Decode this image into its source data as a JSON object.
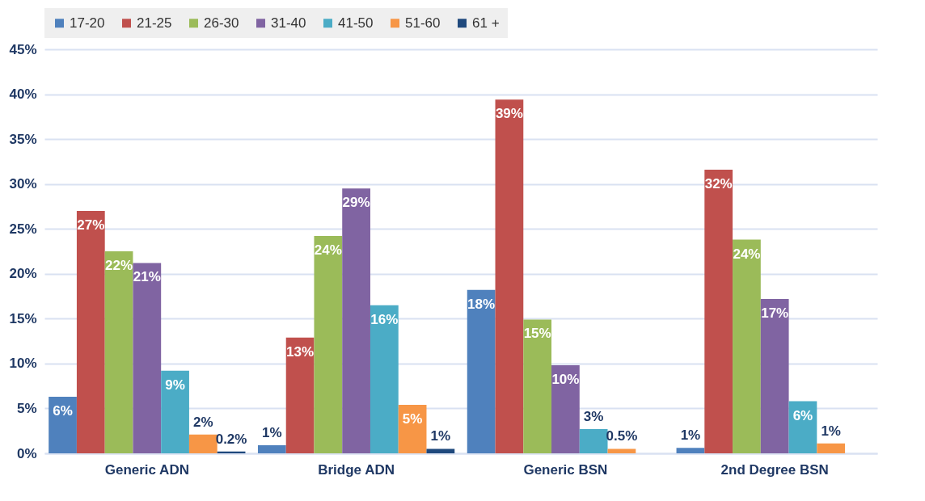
{
  "chart_data": {
    "type": "bar",
    "categories": [
      "Generic ADN",
      "Bridge ADN",
      "Generic BSN",
      "2nd Degree BSN"
    ],
    "series": [
      {
        "name": "17-20",
        "color": "#4f81bd",
        "values": [
          6.3,
          0.9,
          18.2,
          0.6
        ],
        "value_labels": [
          "6%",
          "1%",
          "18%",
          "1%"
        ]
      },
      {
        "name": "21-25",
        "color": "#c0504d",
        "values": [
          27.0,
          12.9,
          39.4,
          31.6
        ],
        "value_labels": [
          "27%",
          "13%",
          "39%",
          "32%"
        ]
      },
      {
        "name": "26-30",
        "color": "#9bbb59",
        "values": [
          22.5,
          24.2,
          14.9,
          23.8
        ],
        "value_labels": [
          "22%",
          "24%",
          "15%",
          "24%"
        ]
      },
      {
        "name": "31-40",
        "color": "#8064a2",
        "values": [
          21.2,
          29.5,
          9.8,
          17.2
        ],
        "value_labels": [
          "21%",
          "29%",
          "10%",
          "17%"
        ]
      },
      {
        "name": "41-50",
        "color": "#4bacc6",
        "values": [
          9.2,
          16.5,
          2.7,
          5.8
        ],
        "value_labels": [
          "9%",
          "16%",
          "3%",
          "6%"
        ]
      },
      {
        "name": "51-60",
        "color": "#f79646",
        "values": [
          2.1,
          5.4,
          0.5,
          1.1
        ],
        "value_labels": [
          "2%",
          "5%",
          "0.5%",
          "1%"
        ]
      },
      {
        "name": "61 +",
        "color": "#1f497d",
        "values": [
          0.2,
          0.5,
          null,
          null
        ],
        "value_labels": [
          "0.2%",
          "1%",
          null,
          null
        ]
      }
    ],
    "ylim": [
      0,
      45
    ],
    "yticks": [
      {
        "value": 0,
        "label": "0%"
      },
      {
        "value": 5,
        "label": "5%"
      },
      {
        "value": 10,
        "label": "10%"
      },
      {
        "value": 15,
        "label": "15%"
      },
      {
        "value": 20,
        "label": "20%"
      },
      {
        "value": 25,
        "label": "25%"
      },
      {
        "value": 30,
        "label": "30%"
      },
      {
        "value": 35,
        "label": "35%"
      },
      {
        "value": 40,
        "label": "40%"
      },
      {
        "value": 45,
        "label": "45%"
      }
    ],
    "grid": "y",
    "legend": "top"
  }
}
